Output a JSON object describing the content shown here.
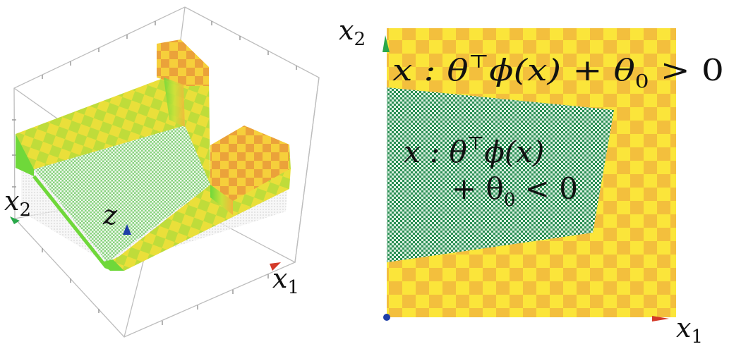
{
  "left_panel": {
    "axis_x1": {
      "base": "x",
      "sub": "1"
    },
    "axis_x2": {
      "base": "x",
      "sub": "2"
    },
    "axis_z": "z",
    "colors": {
      "box_edge": "#bdbdbd",
      "high_checker_light": "#f7e23c",
      "high_checker_dark": "#c6da3a",
      "high_orange": "#f3b23b",
      "step_wall": "#7ddf3a",
      "low_mesh": "#a9e3a0",
      "z_axis": "#1f3fa8",
      "x1_axis": "#d43a2a",
      "x2_axis": "#2aa84a"
    }
  },
  "right_panel": {
    "axis_x1": {
      "base": "x",
      "sub": "1"
    },
    "axis_x2": {
      "base": "x",
      "sub": "2"
    },
    "region_positive": {
      "line1": "x : θ",
      "sup": "⊤",
      "line1_rest": "ϕ(x) + θ",
      "sub": "0",
      "tail": " > 0"
    },
    "region_negative": {
      "line1": "x : θ",
      "sup": "⊤",
      "line1_rest": "ϕ(x)",
      "line2": "+ θ",
      "sub": "0",
      "tail": " < 0"
    },
    "colors": {
      "checker_light": "#fbe53a",
      "checker_dark": "#f3bf3d",
      "mesh_dark": "#1f8a4c",
      "mesh_light": "#e6f4ea",
      "origin": "#1f3fa8",
      "x1_axis": "#d43a2a",
      "x2_axis": "#2aa84a"
    }
  }
}
